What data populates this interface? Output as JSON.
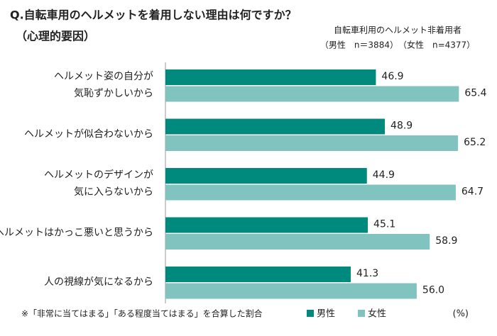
{
  "chart_data": {
    "type": "hbar",
    "title": "Q.自転車用のヘルメットを着用しない理由は何ですか？",
    "subtitle": "（心理的要因）",
    "respondents": "自転車利用のヘルメット非着用者",
    "sample_sizes": "（男性　n＝3884）　（女性　n=4377）",
    "footnote": "※「非常に当てはまる」「ある程度当てはまる」を合算した割合",
    "unit": "(%)",
    "categories": [
      [
        "ヘルメット姿の自分が",
        "気恥ずかしいから"
      ],
      [
        "ヘルメットが似合わないから"
      ],
      [
        "ヘルメットのデザインが",
        "気に入らないから"
      ],
      [
        "ヘルメットはかっこ悪いと思うから"
      ],
      [
        "人の視線が気になるから"
      ]
    ],
    "series": [
      {
        "name": "男性",
        "color": "#008a7e",
        "values": [
          46.9,
          48.9,
          44.9,
          45.1,
          41.3
        ]
      },
      {
        "name": "女性",
        "color": "#80c3bf",
        "values": [
          65.4,
          65.2,
          64.7,
          58.9,
          56.0
        ],
        "value_labels": [
          "65.4",
          "65.2",
          "64.7",
          "58.9",
          "56.0"
        ]
      }
    ]
  }
}
